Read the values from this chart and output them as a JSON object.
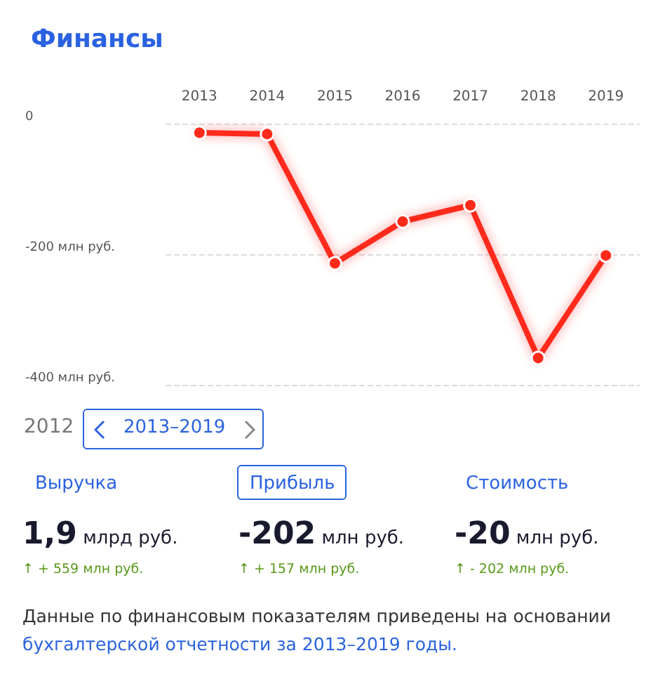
{
  "chart_data": {
    "type": "line",
    "title": "Финансы",
    "categories": [
      "2013",
      "2014",
      "2015",
      "2016",
      "2017",
      "2018",
      "2019"
    ],
    "series": [
      {
        "color": "#ff2a1a",
        "values": [
          -14,
          -16,
          -214,
          -150,
          -125,
          -359,
          -202
        ]
      }
    ],
    "ylim": [
      -400,
      0
    ],
    "yticks": [
      0,
      {
        "value": -200,
        "label": "-200 млн руб."
      },
      {
        "value": -400,
        "label": "-400 млн руб."
      }
    ],
    "grid": "y",
    "marker": "circle",
    "line_style": "solid",
    "annotations": [
      "2012",
      "2013–2019",
      "Выручка",
      "Прибыль",
      "Стоимость",
      "1,9 млрд руб.",
      "-202 млн руб.",
      "-20 млн руб.",
      "↑ + 559 млн руб.",
      "↑ + 157 млн руб.",
      "↑ - 202 млн руб.",
      "Данные по финансовым показателям приведены на основании",
      "бухгалтерской отчетности за 2013–2019 годы."
    ]
  }
}
